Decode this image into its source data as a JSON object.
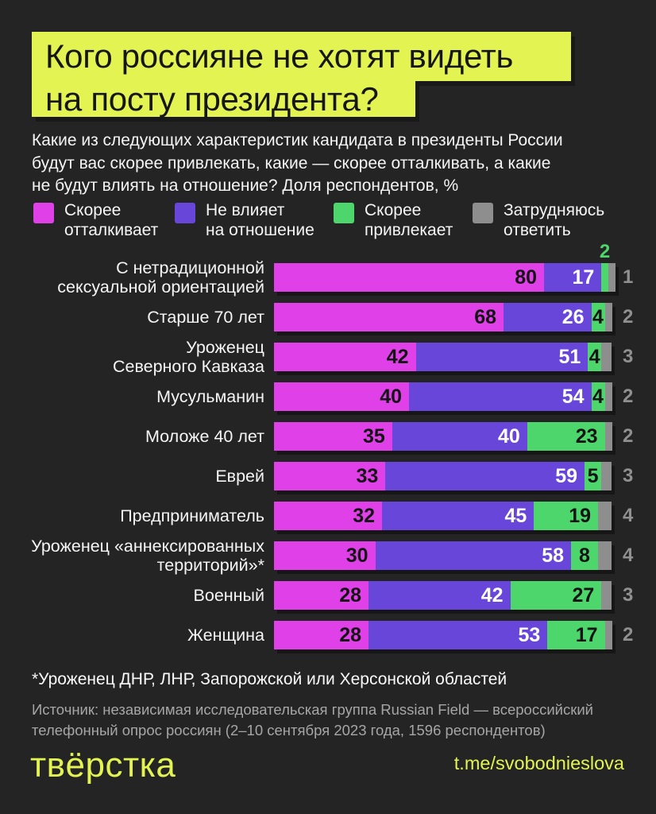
{
  "title": {
    "line1": "Кого россияне не хотят видеть",
    "line2": "на посту президента?"
  },
  "subtitle": "Какие из следующих характеристик кандидата в президенты России\nбудут вас скорее привлекать, какие — скорее отталкивать, а какие\nне будут влиять на отношение? Доля респондентов, %",
  "legend": [
    {
      "label": "Скорее\nотталкивает",
      "color": "#E040E8"
    },
    {
      "label": "Не влияет\nна отношение",
      "color": "#6746D9"
    },
    {
      "label": "Скорее\nпривлекает",
      "color": "#4CD66C"
    },
    {
      "label": "Затрудняюсь\nответить",
      "color": "#8E8E8E"
    }
  ],
  "chart_data": {
    "type": "bar",
    "orientation": "horizontal",
    "stacked": true,
    "unit": "%",
    "xlim": [
      0,
      100
    ],
    "categories": [
      "С нетрадиционной\nсексуальной ориентацией",
      "Старше 70 лет",
      "Уроженец\nСеверного Кавказа",
      "Мусульманин",
      "Моложе 40 лет",
      "Еврей",
      "Предприниматель",
      "Уроженец «аннексированных\nтерриторий»*",
      "Военный",
      "Женщина"
    ],
    "series": [
      {
        "name": "Скорее отталкивает",
        "color": "#E040E8",
        "values": [
          80,
          68,
          42,
          40,
          35,
          33,
          32,
          30,
          28,
          28
        ]
      },
      {
        "name": "Не влияет на отношение",
        "color": "#6746D9",
        "values": [
          17,
          26,
          51,
          54,
          40,
          59,
          45,
          58,
          42,
          53
        ]
      },
      {
        "name": "Скорее привлекает",
        "color": "#4CD66C",
        "values": [
          2,
          4,
          4,
          4,
          23,
          5,
          19,
          8,
          27,
          17
        ]
      },
      {
        "name": "Затрудняюсь ответить",
        "color": "#8E8E8E",
        "values": [
          1,
          2,
          3,
          2,
          2,
          3,
          4,
          4,
          3,
          2
        ]
      }
    ]
  },
  "footnote": "*Уроженец ДНР, ЛНР, Запорожской или Херсонской областей",
  "source": "Источник: независимая исследовательская группа Russian Field — всероссийский\nтелефонный опрос россиян (2–10 сентября 2023 года, 1596 респондентов)",
  "footer": {
    "logo": "твёрстка",
    "link": "t.me/svobodnieslova"
  },
  "colors": {
    "background": "#242424",
    "accent_yellow": "#E3F452",
    "text_light": "#F5F5F5",
    "text_muted": "#A6A6A6"
  }
}
